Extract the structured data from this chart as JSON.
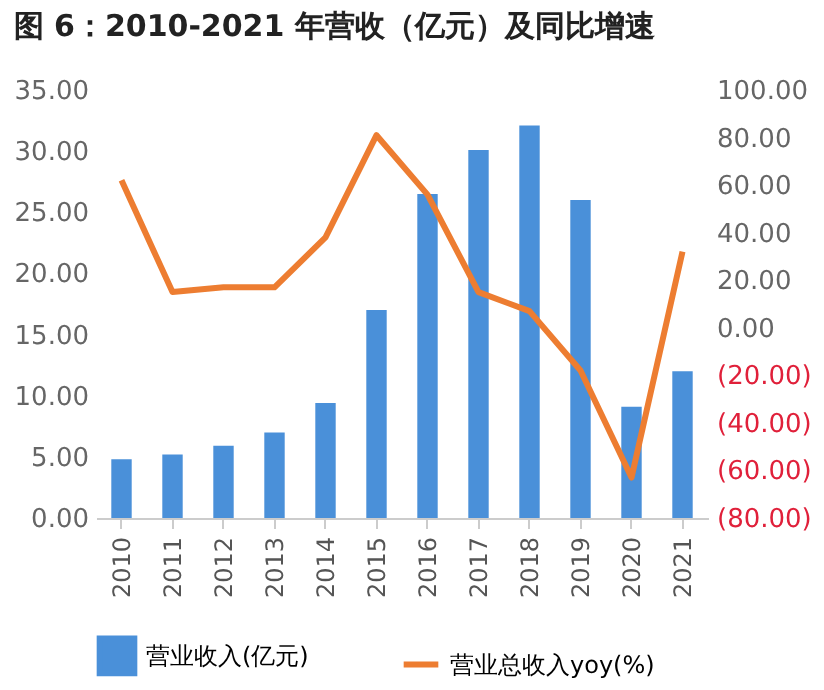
{
  "chart_data": {
    "type": "bar",
    "title": "图 6：2010-2021 年营收（亿元）及同比增速",
    "categories": [
      "2010",
      "2011",
      "2012",
      "2013",
      "2014",
      "2015",
      "2016",
      "2017",
      "2018",
      "2019",
      "2020",
      "2021"
    ],
    "series": [
      {
        "name": "营业收入(亿元)",
        "color": "#4a90d9",
        "values": [
          4.8,
          5.2,
          5.9,
          7.0,
          9.4,
          17.0,
          26.5,
          30.1,
          32.1,
          26.0,
          9.1,
          12.0
        ]
      },
      {
        "name": "营业总收入yoy(%)",
        "type": "line",
        "axis": "y2",
        "color": "#ed7d31",
        "values": [
          62,
          15,
          17,
          17,
          38,
          81,
          56,
          15,
          7,
          -18,
          -63,
          32
        ]
      }
    ],
    "ylim": [
      0,
      35
    ],
    "yticks": [
      {
        "value": 0,
        "label": "0.00"
      },
      {
        "value": 5,
        "label": "5.00"
      },
      {
        "value": 10,
        "label": "10.00"
      },
      {
        "value": 15,
        "label": "15.00"
      },
      {
        "value": 20,
        "label": "20.00"
      },
      {
        "value": 25,
        "label": "25.00"
      },
      {
        "value": 30,
        "label": "30.00"
      },
      {
        "value": 35,
        "label": "35.00"
      }
    ],
    "y2lim": [
      -80,
      100
    ],
    "y2ticks": [
      {
        "value": -80,
        "label": "(80.00)"
      },
      {
        "value": -60,
        "label": "(60.00)"
      },
      {
        "value": -40,
        "label": "(40.00)"
      },
      {
        "value": -20,
        "label": "(20.00)"
      },
      {
        "value": 0,
        "label": "0.00"
      },
      {
        "value": 20,
        "label": "20.00"
      },
      {
        "value": 40,
        "label": "40.00"
      },
      {
        "value": 60,
        "label": "60.00"
      },
      {
        "value": 80,
        "label": "80.00"
      },
      {
        "value": 100,
        "label": "100.00"
      }
    ],
    "grid": false,
    "legend": "bottom",
    "marker": "none",
    "line_style": "solid"
  }
}
